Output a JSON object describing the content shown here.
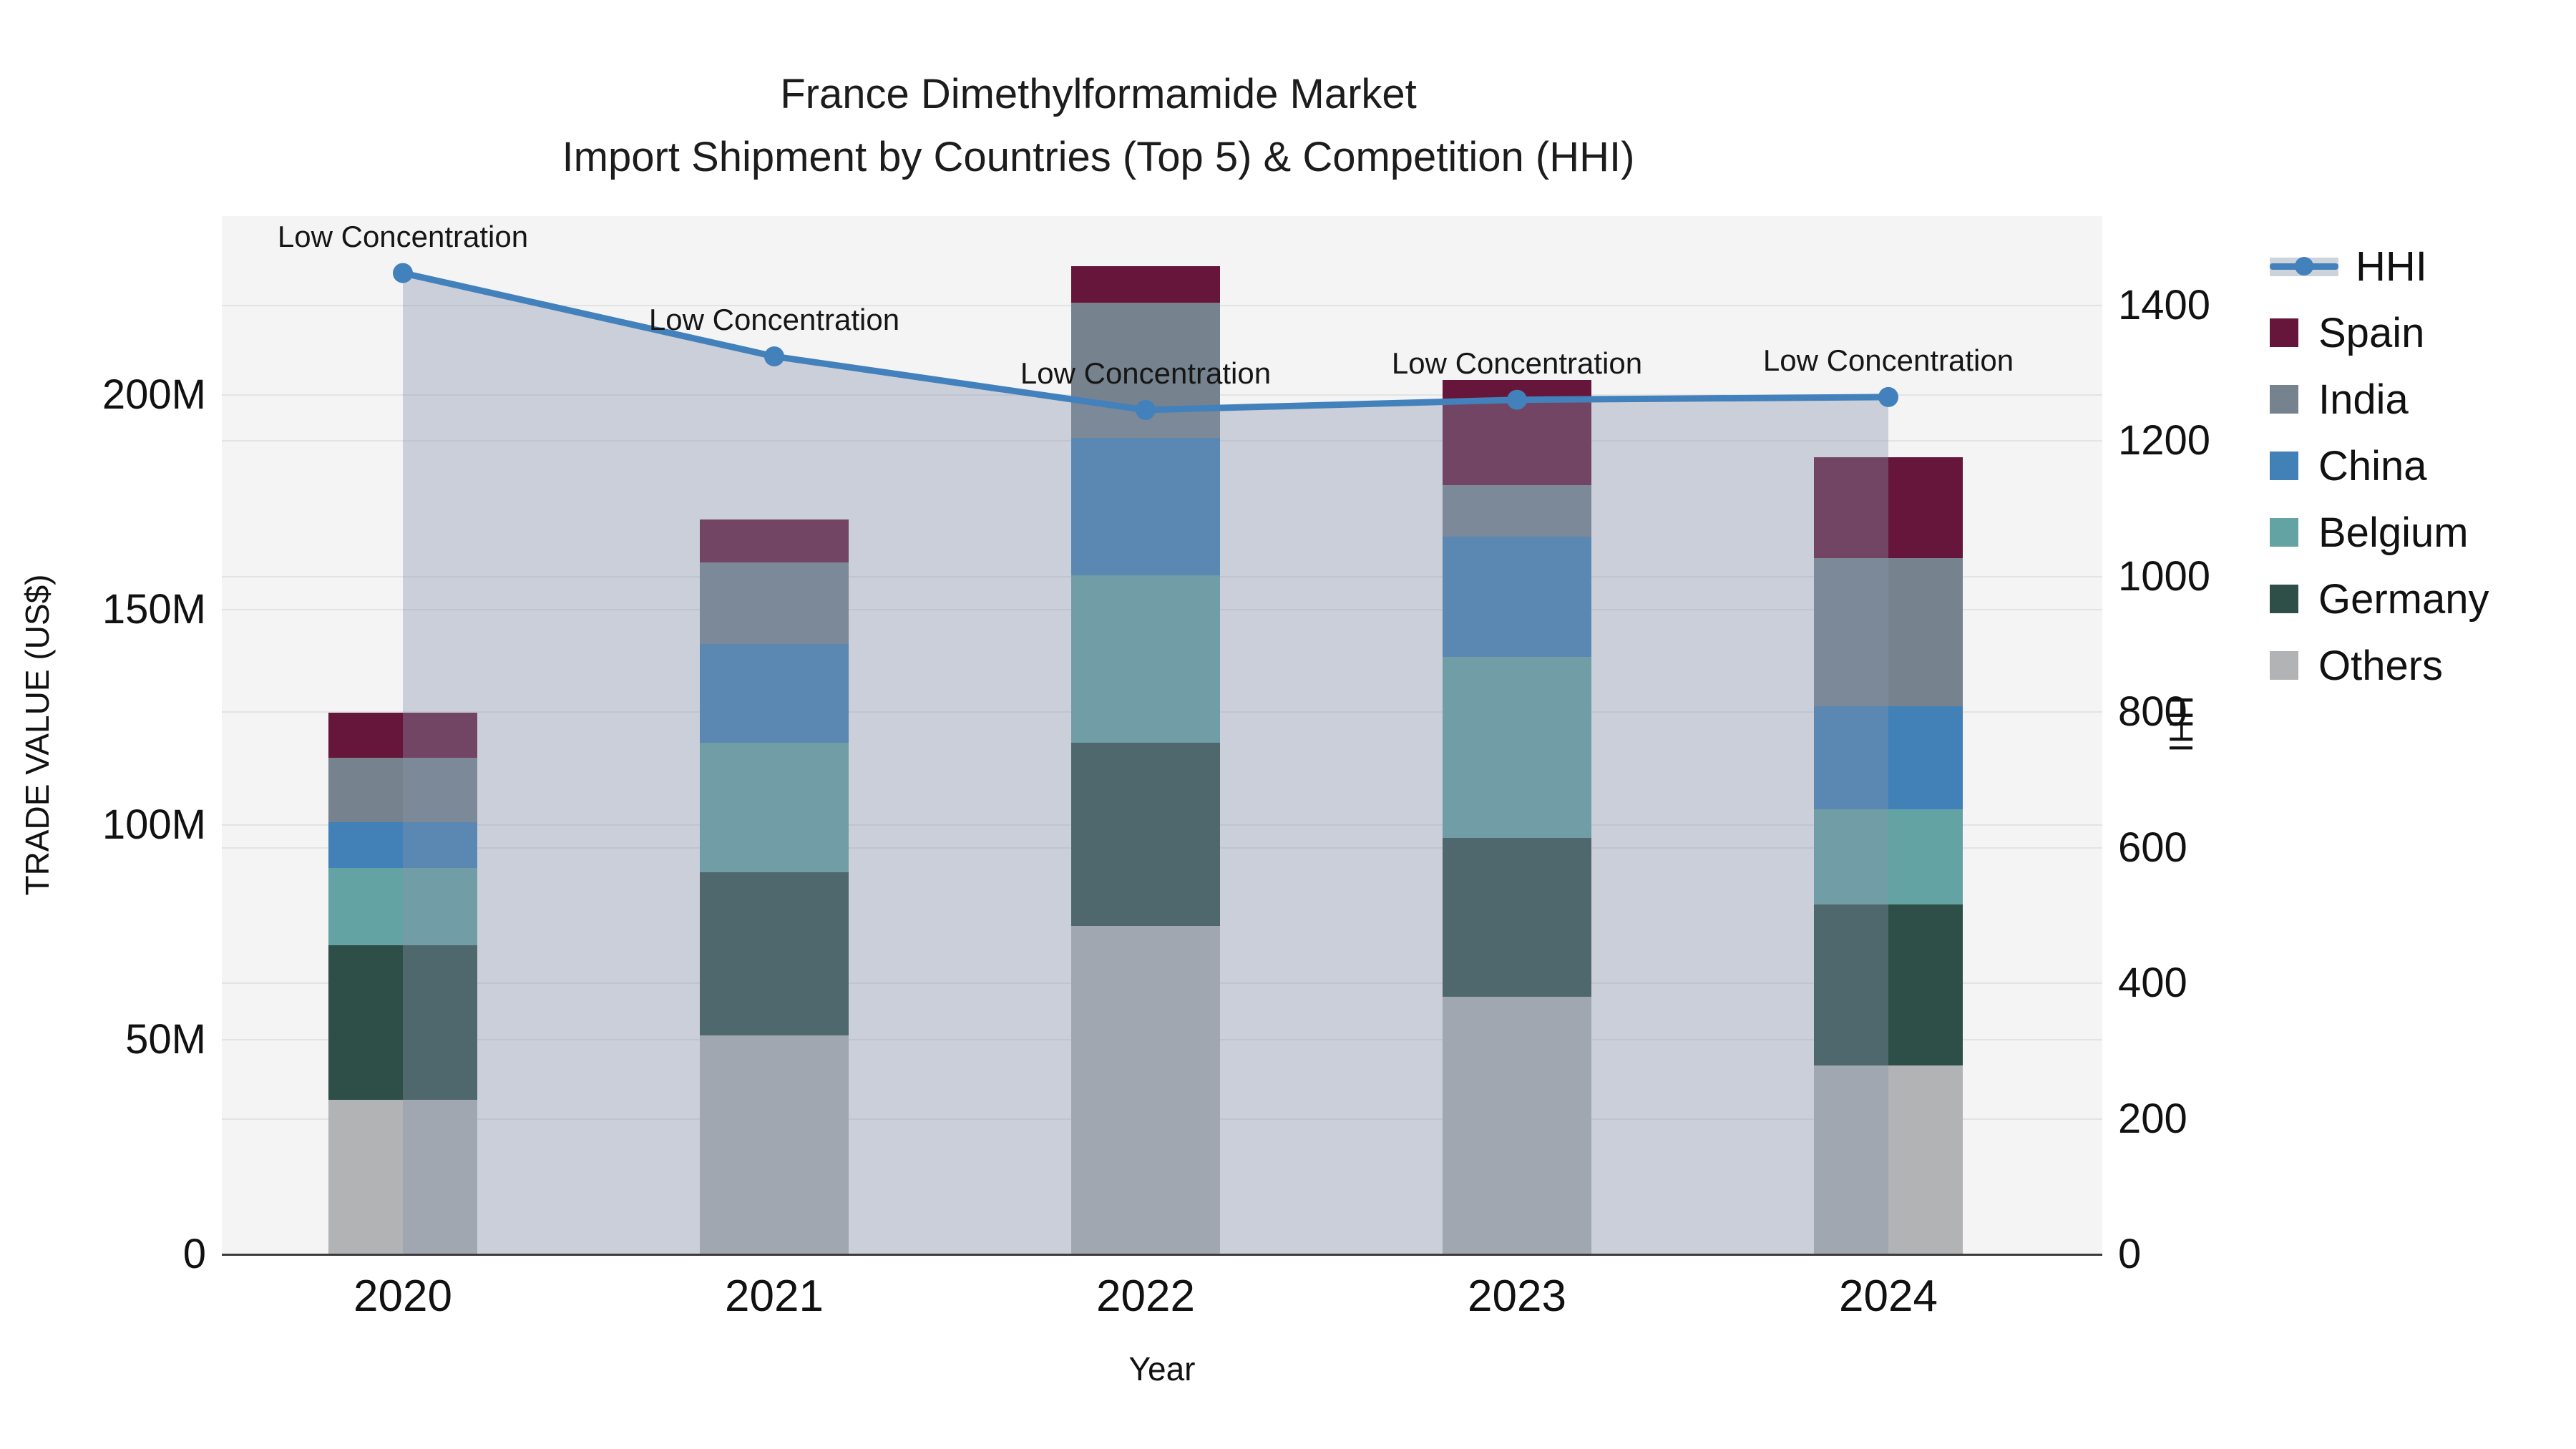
{
  "title": {
    "line1": "France Dimethylformamide Market",
    "line2": "Import Shipment by Countries (Top 5) & Competition (HHI)"
  },
  "axes": {
    "x": {
      "title": "Year",
      "categories": [
        "2020",
        "2021",
        "2022",
        "2023",
        "2024"
      ]
    },
    "y_left": {
      "title": "TRADE VALUE (US$)",
      "tick_labels": [
        "0",
        "50M",
        "100M",
        "150M",
        "200M"
      ],
      "tick_values_millions": [
        0,
        50,
        100,
        150,
        200
      ]
    },
    "y_right": {
      "title": "HHI",
      "tick_labels": [
        "0",
        "200",
        "400",
        "600",
        "800",
        "1000",
        "1200",
        "1400"
      ],
      "tick_values": [
        0,
        200,
        400,
        600,
        800,
        1000,
        1200,
        1400
      ]
    }
  },
  "colors": {
    "plot_background": "#f4f4f5",
    "hhi_line": "#4281bb",
    "hhi_area_fill": "rgba(133,147,170,0.38)",
    "hhi_legend_band": "#cdd3da",
    "axis_line": "#3b3b3b",
    "spain": "#66163a",
    "india": "#76838f",
    "china": "#4280b8",
    "belgium": "#63a3a4",
    "germany": "#2e4e48",
    "others": "#b2b3b4"
  },
  "annotations": {
    "labels": [
      "Low Concentration",
      "Low Concentration",
      "Low Concentration",
      "Low Concentration",
      "Low Concentration"
    ]
  },
  "legend": {
    "items": [
      {
        "label": "HHI",
        "type": "line",
        "color": "#4281bb",
        "band": "#cdd3da"
      },
      {
        "label": "Spain",
        "type": "box",
        "color": "#66163a"
      },
      {
        "label": "India",
        "type": "box",
        "color": "#76838f"
      },
      {
        "label": "China",
        "type": "box",
        "color": "#4280b8"
      },
      {
        "label": "Belgium",
        "type": "box",
        "color": "#63a3a4"
      },
      {
        "label": "Germany",
        "type": "box",
        "color": "#2e4e48"
      },
      {
        "label": "Others",
        "type": "box",
        "color": "#b2b3b4"
      }
    ]
  },
  "chart_data": {
    "type": "combo-stacked-bar-and-line",
    "title": "France Dimethylformamide Market — Import Shipment by Countries (Top 5) & Competition (HHI)",
    "categories": [
      "2020",
      "2021",
      "2022",
      "2023",
      "2024"
    ],
    "bar_unit": "million US$",
    "stack_order_bottom_to_top": [
      "Others",
      "Germany",
      "Belgium",
      "China",
      "India",
      "Spain"
    ],
    "series": [
      {
        "name": "Spain",
        "color": "#66163a",
        "values": [
          10.5,
          10.0,
          8.5,
          24.5,
          23.5
        ]
      },
      {
        "name": "India",
        "color": "#76838f",
        "values": [
          15.0,
          19.0,
          31.5,
          12.0,
          34.5
        ]
      },
      {
        "name": "China",
        "color": "#4280b8",
        "values": [
          10.5,
          23.0,
          32.0,
          28.0,
          24.0
        ]
      },
      {
        "name": "Belgium",
        "color": "#63a3a4",
        "values": [
          18.0,
          30.0,
          39.0,
          42.0,
          22.0
        ]
      },
      {
        "name": "Germany",
        "color": "#2e4e48",
        "values": [
          36.0,
          38.0,
          42.5,
          37.0,
          37.5
        ]
      },
      {
        "name": "Others",
        "color": "#b2b3b4",
        "values": [
          36.0,
          51.0,
          76.5,
          60.0,
          44.0
        ]
      }
    ],
    "bar_totals_millions": [
      126.0,
      171.0,
      230.0,
      203.5,
      185.5
    ],
    "line_series": {
      "name": "HHI",
      "color": "#4281bb",
      "values": [
        1448,
        1325,
        1246,
        1261,
        1265
      ],
      "area_fill": true,
      "point_annotations": [
        "Low Concentration",
        "Low Concentration",
        "Low Concentration",
        "Low Concentration",
        "Low Concentration"
      ]
    },
    "xlabel": "Year",
    "ylabel_left": "TRADE VALUE (US$)",
    "ylabel_right": "HHI",
    "ylim_left_millions": [
      0,
      241.6
    ],
    "ylim_right": [
      0,
      1532
    ],
    "grid": true,
    "legend_position": "right"
  }
}
